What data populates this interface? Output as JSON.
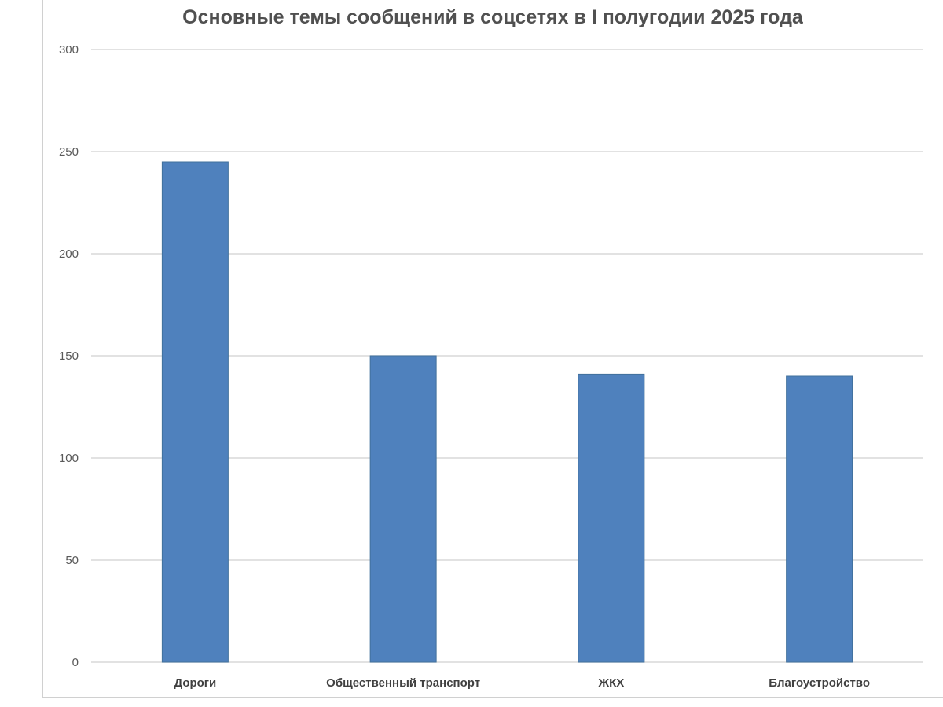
{
  "chart_data": {
    "type": "bar",
    "title": "Основные темы сообщений в соцсетях в I полугодии 2025 года",
    "xlabel": "",
    "ylabel": "",
    "categories": [
      "Дороги",
      "Общественный транспорт",
      "ЖКХ",
      "Благоустройство"
    ],
    "values": [
      245,
      150,
      141,
      140
    ],
    "ylim": [
      0,
      300
    ],
    "yticks": [
      "0",
      "50",
      "100",
      "150",
      "200",
      "250",
      "300"
    ],
    "grid": true,
    "legend": "none",
    "bar_color": "#4f81bd",
    "gridline_color": "#d9d9d9"
  }
}
